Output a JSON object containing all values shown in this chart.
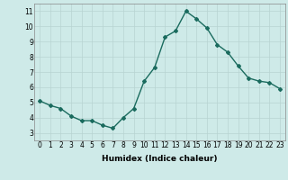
{
  "x": [
    0,
    1,
    2,
    3,
    4,
    5,
    6,
    7,
    8,
    9,
    10,
    11,
    12,
    13,
    14,
    15,
    16,
    17,
    18,
    19,
    20,
    21,
    22,
    23
  ],
  "y": [
    5.1,
    4.8,
    4.6,
    4.1,
    3.8,
    3.8,
    3.5,
    3.3,
    4.0,
    4.6,
    6.4,
    7.3,
    9.3,
    9.7,
    11.0,
    10.5,
    9.9,
    8.8,
    8.3,
    7.4,
    6.6,
    6.4,
    6.3,
    5.9
  ],
  "xlabel": "Humidex (Indice chaleur)",
  "ylim": [
    2.5,
    11.5
  ],
  "xlim": [
    -0.5,
    23.5
  ],
  "yticks": [
    3,
    4,
    5,
    6,
    7,
    8,
    9,
    10,
    11
  ],
  "xticks": [
    0,
    1,
    2,
    3,
    4,
    5,
    6,
    7,
    8,
    9,
    10,
    11,
    12,
    13,
    14,
    15,
    16,
    17,
    18,
    19,
    20,
    21,
    22,
    23
  ],
  "line_color": "#1a6b5e",
  "bg_color": "#ceeae8",
  "grid_color": "#b8d4d2",
  "marker": "D",
  "marker_size": 2.0,
  "linewidth": 1.0,
  "tick_fontsize": 5.5,
  "xlabel_fontsize": 6.5
}
